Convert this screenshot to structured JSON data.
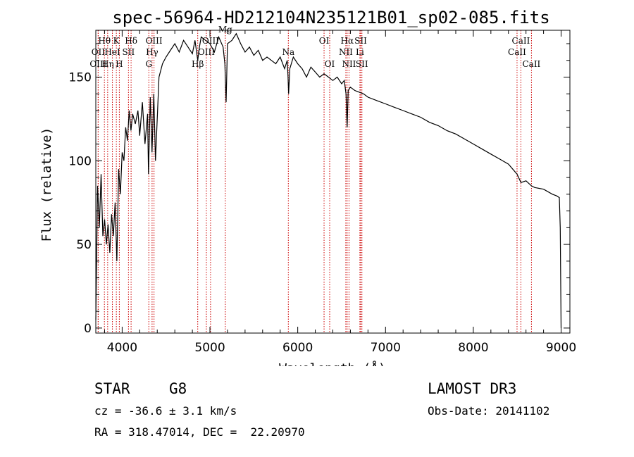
{
  "chart_data": {
    "type": "line",
    "title": "spec-56964-HD212104N235121B01_sp02-085.fits",
    "xlabel": "Wavelength (Å)",
    "ylabel": "Flux (relative)",
    "xlim": [
      3700,
      9100
    ],
    "ylim": [
      -3,
      178
    ],
    "xticks": [
      4000,
      5000,
      6000,
      7000,
      8000,
      9000
    ],
    "yticks": [
      0,
      50,
      100,
      150
    ],
    "x": [
      3700,
      3720,
      3740,
      3760,
      3780,
      3800,
      3820,
      3840,
      3860,
      3880,
      3900,
      3920,
      3940,
      3960,
      3980,
      4000,
      4020,
      4040,
      4060,
      4080,
      4100,
      4120,
      4150,
      4180,
      4200,
      4230,
      4260,
      4290,
      4300,
      4320,
      4340,
      4360,
      4380,
      4420,
      4460,
      4500,
      4550,
      4600,
      4650,
      4700,
      4750,
      4800,
      4830,
      4861,
      4880,
      4900,
      4950,
      5000,
      5050,
      5100,
      5150,
      5170,
      5184,
      5200,
      5250,
      5300,
      5350,
      5400,
      5450,
      5500,
      5550,
      5600,
      5650,
      5700,
      5750,
      5800,
      5850,
      5880,
      5890,
      5896,
      5910,
      5950,
      6000,
      6050,
      6100,
      6150,
      6200,
      6250,
      6300,
      6350,
      6400,
      6450,
      6500,
      6530,
      6550,
      6563,
      6575,
      6600,
      6650,
      6700,
      6750,
      6800,
      6900,
      7000,
      7100,
      7200,
      7300,
      7400,
      7500,
      7600,
      7700,
      7800,
      7900,
      8000,
      8100,
      8200,
      8300,
      8400,
      8498,
      8542,
      8600,
      8662,
      8700,
      8800,
      8900,
      8950,
      8980,
      8990,
      9000
    ],
    "y": [
      5,
      85,
      60,
      92,
      55,
      65,
      50,
      62,
      45,
      68,
      55,
      75,
      40,
      95,
      80,
      105,
      100,
      120,
      112,
      130,
      118,
      128,
      122,
      130,
      115,
      135,
      110,
      128,
      92,
      138,
      105,
      140,
      100,
      150,
      158,
      162,
      166,
      170,
      165,
      172,
      168,
      164,
      172,
      160,
      168,
      174,
      172,
      170,
      165,
      174,
      168,
      158,
      135,
      170,
      172,
      176,
      170,
      165,
      168,
      163,
      166,
      160,
      162,
      160,
      158,
      162,
      155,
      160,
      150,
      140,
      155,
      162,
      158,
      155,
      150,
      156,
      153,
      150,
      152,
      150,
      148,
      150,
      146,
      148,
      140,
      120,
      142,
      144,
      142,
      141,
      140,
      138,
      136,
      134,
      132,
      130,
      128,
      126,
      123,
      121,
      118,
      116,
      113,
      110,
      107,
      104,
      101,
      98,
      92,
      87,
      88,
      85,
      84,
      83,
      80,
      79,
      78,
      60,
      0
    ],
    "spectral_lines": [
      {
        "label": "Hθ",
        "row": 1,
        "wavelength": 3798
      },
      {
        "label": "OII",
        "row": 2,
        "wavelength": 3727
      },
      {
        "label": "OIII",
        "row": 3,
        "wavelength": 3727
      },
      {
        "label": "Hη",
        "row": 3,
        "wavelength": 3835
      },
      {
        "label": "K",
        "row": 1,
        "wavelength": 3934
      },
      {
        "label": "HeI",
        "row": 2,
        "wavelength": 3889
      },
      {
        "label": "H",
        "row": 3,
        "wavelength": 3968
      },
      {
        "label": "Hδ",
        "row": 1,
        "wavelength": 4102
      },
      {
        "label": "SII",
        "row": 2,
        "wavelength": 4072
      },
      {
        "label": "OIII",
        "row": 1,
        "wavelength": 4363
      },
      {
        "label": "Hγ",
        "row": 2,
        "wavelength": 4341
      },
      {
        "label": "G",
        "row": 3,
        "wavelength": 4304
      },
      {
        "label": "OIII",
        "row": 1,
        "wavelength": 5007
      },
      {
        "label": "OIII",
        "row": 2,
        "wavelength": 4959
      },
      {
        "label": "Hβ",
        "row": 3,
        "wavelength": 4861
      },
      {
        "label": "Mg",
        "row": 0,
        "wavelength": 5175
      },
      {
        "label": "Na",
        "row": 2,
        "wavelength": 5893
      },
      {
        "label": "OI",
        "row": 1,
        "wavelength": 6300
      },
      {
        "label": "OI",
        "row": 3,
        "wavelength": 6364
      },
      {
        "label": "Hα",
        "row": 1,
        "wavelength": 6563
      },
      {
        "label": "NII",
        "row": 2,
        "wavelength": 6548
      },
      {
        "label": "NII",
        "row": 3,
        "wavelength": 6584
      },
      {
        "label": "SII",
        "row": 1,
        "wavelength": 6717
      },
      {
        "label": "Li",
        "row": 2,
        "wavelength": 6708
      },
      {
        "label": "SII",
        "row": 3,
        "wavelength": 6731
      },
      {
        "label": "CaII",
        "row": 1,
        "wavelength": 8542
      },
      {
        "label": "CaII",
        "row": 2,
        "wavelength": 8498
      },
      {
        "label": "CaII",
        "row": 3,
        "wavelength": 8662
      }
    ]
  },
  "info": {
    "object_class": "STAR",
    "subclass": "G8",
    "survey": "LAMOST DR3",
    "cz": "cz = -36.6 ± 3.1 km/s",
    "obs_date": "Obs-Date: 20141102",
    "coords": "RA = 318.47014, DEC =  22.20970"
  },
  "colors": {
    "spectrum": "#000000",
    "marker_line": "#cc0000"
  }
}
